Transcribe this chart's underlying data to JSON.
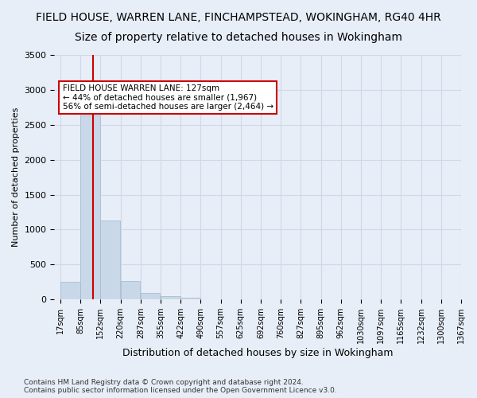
{
  "title1": "FIELD HOUSE, WARREN LANE, FINCHAMPSTEAD, WOKINGHAM, RG40 4HR",
  "title2": "Size of property relative to detached houses in Wokingham",
  "xlabel": "Distribution of detached houses by size in Wokingham",
  "ylabel": "Number of detached properties",
  "footnote": "Contains HM Land Registry data © Crown copyright and database right 2024.\nContains public sector information licensed under the Open Government Licence v3.0.",
  "bar_edges": [
    17,
    85,
    152,
    220,
    287,
    355,
    422,
    490,
    557,
    625,
    692,
    760,
    827,
    895,
    962,
    1030,
    1097,
    1165,
    1232,
    1300,
    1367
  ],
  "bar_heights": [
    255,
    2630,
    1130,
    270,
    95,
    45,
    20,
    0,
    0,
    0,
    0,
    0,
    0,
    0,
    0,
    0,
    0,
    0,
    0,
    0
  ],
  "bar_color": "#c8d8e8",
  "bar_edgecolor": "#a0b8cc",
  "tick_labels": [
    "17sqm",
    "85sqm",
    "152sqm",
    "220sqm",
    "287sqm",
    "355sqm",
    "422sqm",
    "490sqm",
    "557sqm",
    "625sqm",
    "692sqm",
    "760sqm",
    "827sqm",
    "895sqm",
    "962sqm",
    "1030sqm",
    "1097sqm",
    "1165sqm",
    "1232sqm",
    "1300sqm",
    "1367sqm"
  ],
  "property_size": 127,
  "red_line_color": "#cc0000",
  "annotation_text": "FIELD HOUSE WARREN LANE: 127sqm\n← 44% of detached houses are smaller (1,967)\n56% of semi-detached houses are larger (2,464) →",
  "annotation_box_color": "#ffffff",
  "annotation_border_color": "#cc0000",
  "ylim": [
    0,
    3500
  ],
  "yticks": [
    0,
    500,
    1000,
    1500,
    2000,
    2500,
    3000,
    3500
  ],
  "grid_color": "#d0d8e8",
  "bg_color": "#e8eef8",
  "title1_fontsize": 10,
  "title2_fontsize": 10
}
